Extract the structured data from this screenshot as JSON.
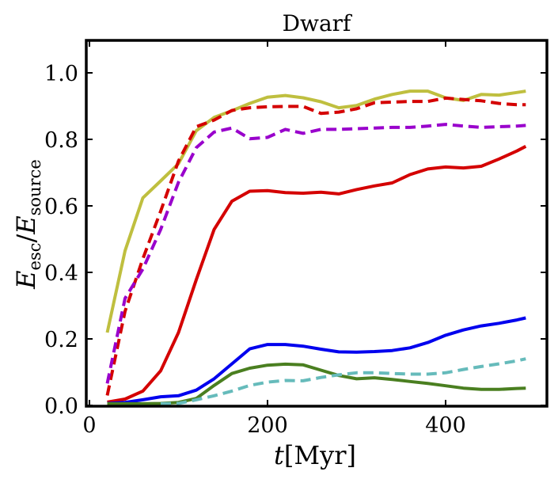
{
  "chart_data": {
    "type": "line",
    "title": "Dwarf",
    "xlabel": "t[Myr]",
    "xlabel_parts": {
      "var": "t",
      "unit": "[Myr]"
    },
    "ylabel": "E_esc / E_source",
    "ylabel_parts": {
      "num": "E",
      "num_sub": "esc",
      "sep": "/",
      "den": "E",
      "den_sub": "source"
    },
    "xlim": [
      -5,
      512
    ],
    "ylim": [
      0,
      1.1
    ],
    "xticks": [
      0,
      200,
      400
    ],
    "xtick_labels": [
      "0",
      "200",
      "400"
    ],
    "yticks": [
      0.0,
      0.2,
      0.4,
      0.6,
      0.8,
      1.0
    ],
    "ytick_labels": [
      "0.0",
      "0.2",
      "0.4",
      "0.6",
      "0.8",
      "1.0"
    ],
    "grid": false,
    "legend": "none",
    "x": [
      20,
      40,
      60,
      80,
      100,
      120,
      140,
      160,
      180,
      200,
      220,
      240,
      260,
      280,
      300,
      320,
      340,
      360,
      380,
      400,
      420,
      440,
      460,
      480,
      490
    ],
    "series": [
      {
        "name": "olive-solid",
        "color": "#bfbf3f",
        "dashed": false,
        "values": [
          0.219,
          0.465,
          0.624,
          0.675,
          0.727,
          0.826,
          0.866,
          0.886,
          0.908,
          0.927,
          0.932,
          0.925,
          0.913,
          0.895,
          0.902,
          0.921,
          0.935,
          0.945,
          0.945,
          0.925,
          0.917,
          0.935,
          0.933,
          0.941,
          0.945
        ]
      },
      {
        "name": "red-dashed",
        "color": "#d40000",
        "dashed": true,
        "values": [
          0.03,
          0.283,
          0.441,
          0.584,
          0.735,
          0.838,
          0.858,
          0.887,
          0.895,
          0.898,
          0.899,
          0.899,
          0.878,
          0.882,
          0.892,
          0.91,
          0.912,
          0.914,
          0.914,
          0.924,
          0.92,
          0.916,
          0.908,
          0.904,
          0.904
        ]
      },
      {
        "name": "purple-dashed",
        "color": "#9900cc",
        "dashed": true,
        "values": [
          0.066,
          0.322,
          0.41,
          0.529,
          0.671,
          0.775,
          0.822,
          0.834,
          0.802,
          0.806,
          0.83,
          0.818,
          0.83,
          0.83,
          0.832,
          0.834,
          0.836,
          0.836,
          0.84,
          0.845,
          0.84,
          0.836,
          0.838,
          0.84,
          0.842
        ]
      },
      {
        "name": "red-solid",
        "color": "#d40000",
        "dashed": false,
        "values": [
          0.01,
          0.019,
          0.043,
          0.104,
          0.219,
          0.378,
          0.529,
          0.614,
          0.644,
          0.646,
          0.64,
          0.638,
          0.641,
          0.636,
          0.649,
          0.66,
          0.669,
          0.694,
          0.711,
          0.717,
          0.714,
          0.719,
          0.741,
          0.765,
          0.779
        ]
      },
      {
        "name": "blue-solid",
        "color": "#0000ee",
        "dashed": false,
        "values": [
          0.006,
          0.009,
          0.017,
          0.026,
          0.029,
          0.046,
          0.08,
          0.125,
          0.17,
          0.183,
          0.183,
          0.178,
          0.169,
          0.161,
          0.16,
          0.162,
          0.165,
          0.173,
          0.189,
          0.211,
          0.227,
          0.239,
          0.247,
          0.257,
          0.263
        ]
      },
      {
        "name": "green-solid",
        "color": "#4a7f20",
        "dashed": false,
        "values": [
          0.005,
          0.005,
          0.005,
          0.006,
          0.009,
          0.021,
          0.06,
          0.096,
          0.112,
          0.121,
          0.124,
          0.122,
          0.106,
          0.09,
          0.08,
          0.083,
          0.078,
          0.072,
          0.066,
          0.059,
          0.052,
          0.048,
          0.048,
          0.051,
          0.052
        ]
      },
      {
        "name": "cyan-dashed",
        "color": "#66bbbb",
        "dashed": true,
        "values": [
          null,
          null,
          null,
          0.005,
          0.006,
          0.017,
          0.029,
          0.043,
          0.06,
          0.07,
          0.075,
          0.074,
          0.084,
          0.092,
          0.098,
          0.098,
          0.096,
          0.094,
          0.094,
          0.098,
          0.108,
          0.117,
          0.125,
          0.134,
          0.14
        ]
      }
    ]
  }
}
